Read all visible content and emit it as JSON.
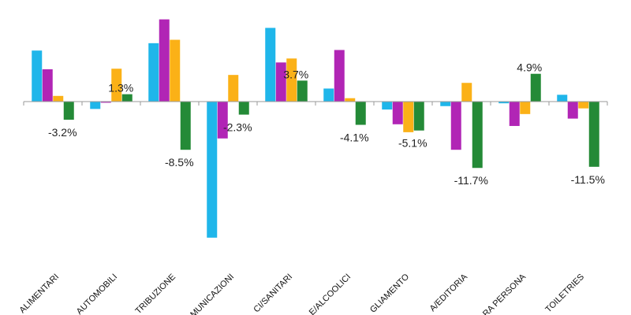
{
  "chart_data": {
    "type": "bar",
    "title": "",
    "xlabel": "",
    "ylabel": "",
    "categories": [
      "ALIMENTARI",
      "AUTOMOBILI",
      "TRIBUZIONE",
      "MUNICAZIONI",
      "CI/SANITARI",
      "E/ALCOOLICI",
      "GLIAMENTO",
      "A/EDITORIA",
      "RA PERSONA",
      "TOILETRIES"
    ],
    "series": [
      {
        "color": "#1fb6ea",
        "values": [
          9.0,
          -1.3,
          10.3,
          -24.0,
          13.0,
          2.3,
          -1.4,
          -0.8,
          -0.3,
          1.2
        ]
      },
      {
        "color": "#b125b5",
        "values": [
          5.7,
          -0.2,
          14.5,
          -6.5,
          6.9,
          9.1,
          -4.0,
          -8.5,
          -4.3,
          -3.0
        ]
      },
      {
        "color": "#fbb117",
        "values": [
          1.0,
          5.8,
          10.9,
          4.7,
          7.6,
          0.6,
          -5.4,
          3.3,
          -2.2,
          -1.2
        ]
      },
      {
        "color": "#248a37",
        "values": [
          -3.2,
          1.3,
          -8.5,
          -2.3,
          3.7,
          -4.1,
          -5.1,
          -11.7,
          4.9,
          -11.5
        ]
      }
    ],
    "data_labels": [
      "-3.2%",
      "1.3%",
      "-8.5%",
      "-2.3%",
      "3.7%",
      "-4.1%",
      "-5.1%",
      "-11.7%",
      "4.9%",
      "-11.5%"
    ],
    "ylim": [
      -25,
      16
    ],
    "grid": false,
    "legend": "none"
  }
}
